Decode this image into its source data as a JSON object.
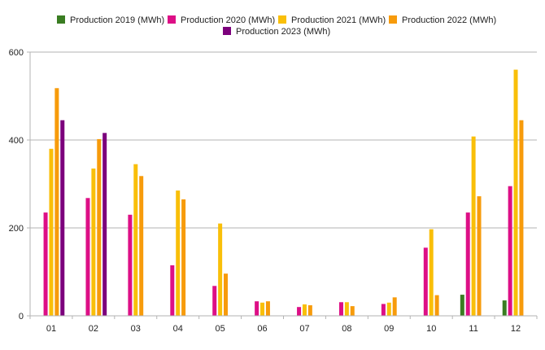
{
  "chart_data": {
    "type": "bar",
    "title": "",
    "xlabel": "",
    "ylabel": "",
    "categories": [
      "01",
      "02",
      "03",
      "04",
      "05",
      "06",
      "07",
      "08",
      "09",
      "10",
      "11",
      "12"
    ],
    "ylim": [
      0,
      600
    ],
    "yticks": [
      0,
      200,
      400,
      600
    ],
    "grid": true,
    "legend_position": "top",
    "series": [
      {
        "name": "Production 2019 (MWh)",
        "color": "#3a7d22",
        "values": [
          null,
          null,
          null,
          null,
          null,
          null,
          null,
          null,
          null,
          null,
          48,
          35
        ]
      },
      {
        "name": "Production 2020 (MWh)",
        "color": "#dd0f86",
        "values": [
          235,
          268,
          230,
          115,
          68,
          33,
          20,
          31,
          27,
          155,
          235,
          295
        ]
      },
      {
        "name": "Production 2021 (MWh)",
        "color": "#f9bf09",
        "values": [
          380,
          335,
          345,
          285,
          210,
          30,
          26,
          31,
          30,
          197,
          408,
          560
        ]
      },
      {
        "name": "Production 2022 (MWh)",
        "color": "#f79b0b",
        "values": [
          518,
          402,
          318,
          265,
          96,
          33,
          24,
          22,
          42,
          47,
          272,
          445
        ]
      },
      {
        "name": "Production 2023 (MWh)",
        "color": "#7c007c",
        "values": [
          445,
          416,
          null,
          null,
          null,
          null,
          null,
          null,
          null,
          null,
          null,
          null
        ]
      }
    ]
  }
}
